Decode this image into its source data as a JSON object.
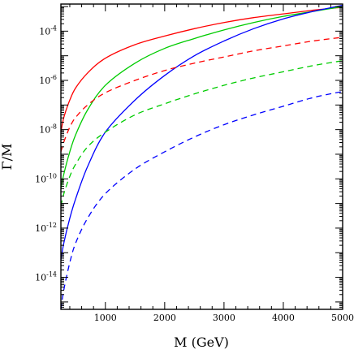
{
  "chart_data": {
    "type": "line",
    "xlabel": "M (GeV)",
    "ylabel": "Γ/M",
    "xlim": [
      250,
      5000
    ],
    "ylim_exp": [
      -15.3,
      -2.9
    ],
    "yscale": "log",
    "x_ticks": [
      {
        "value": 1000,
        "label": "1000"
      },
      {
        "value": 2000,
        "label": "2000"
      },
      {
        "value": 3000,
        "label": "3000"
      },
      {
        "value": 4000,
        "label": "4000"
      },
      {
        "value": 5000,
        "label": "5000"
      }
    ],
    "y_ticks": [
      {
        "exp": -4,
        "base": "10",
        "power": "-4"
      },
      {
        "exp": -6,
        "base": "10",
        "power": "-6"
      },
      {
        "exp": -8,
        "base": "10",
        "power": "-8"
      },
      {
        "exp": -10,
        "base": "10",
        "power": "-10"
      },
      {
        "exp": -12,
        "base": "10",
        "power": "-12"
      },
      {
        "exp": -14,
        "base": "10",
        "power": "-14"
      }
    ],
    "x": [
      250,
      300,
      400,
      500,
      700,
      1000,
      1500,
      2000,
      2500,
      3000,
      3500,
      4000,
      4500,
      5000
    ],
    "series": [
      {
        "color": "#ff0000",
        "dash": "solid",
        "log10_values": [
          -8.1,
          -7.5,
          -6.8,
          -6.3,
          -5.7,
          -5.1,
          -4.55,
          -4.2,
          -3.9,
          -3.65,
          -3.45,
          -3.3,
          -3.15,
          -3.03
        ]
      },
      {
        "color": "#00cc00",
        "dash": "solid",
        "log10_values": [
          -10.4,
          -9.8,
          -8.9,
          -8.2,
          -7.2,
          -6.2,
          -5.3,
          -4.7,
          -4.3,
          -3.95,
          -3.65,
          -3.4,
          -3.2,
          -3.0
        ]
      },
      {
        "color": "#0000ff",
        "dash": "solid",
        "log10_values": [
          -13.3,
          -12.6,
          -11.6,
          -10.8,
          -9.5,
          -8.1,
          -6.8,
          -5.8,
          -5.0,
          -4.4,
          -3.9,
          -3.5,
          -3.2,
          -2.95
        ]
      },
      {
        "color": "#ff0000",
        "dash": "dashed",
        "log10_values": [
          -8.9,
          -8.5,
          -7.9,
          -7.5,
          -7.0,
          -6.5,
          -6.0,
          -5.6,
          -5.3,
          -5.05,
          -4.8,
          -4.6,
          -4.4,
          -4.25
        ]
      },
      {
        "color": "#00cc00",
        "dash": "dashed",
        "log10_values": [
          -11.1,
          -10.6,
          -9.9,
          -9.4,
          -8.7,
          -8.1,
          -7.4,
          -6.95,
          -6.55,
          -6.2,
          -5.9,
          -5.65,
          -5.4,
          -5.2
        ]
      },
      {
        "color": "#0000ff",
        "dash": "dashed",
        "log10_values": [
          -15.3,
          -14.5,
          -13.4,
          -12.6,
          -11.6,
          -10.6,
          -9.6,
          -8.9,
          -8.3,
          -7.8,
          -7.4,
          -7.05,
          -6.7,
          -6.45
        ]
      }
    ],
    "grid": false,
    "legend": "none"
  }
}
